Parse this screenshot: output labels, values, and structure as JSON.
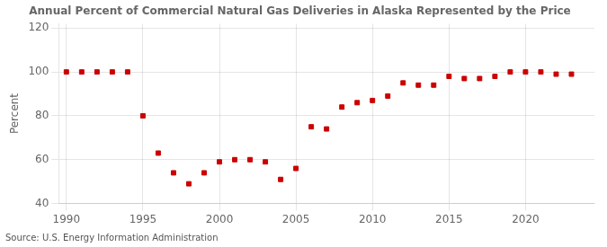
{
  "chart_data": {
    "type": "scatter",
    "title": "Annual Percent of Commercial Natural Gas Deliveries in Alaska Represented by the Price",
    "ylabel": "Percent",
    "annotations": [
      "Source: U.S. Energy Information Administration"
    ],
    "x": [
      1990,
      1991,
      1992,
      1993,
      1994,
      1995,
      1996,
      1997,
      1998,
      1999,
      2000,
      2001,
      2002,
      2003,
      2004,
      2005,
      2006,
      2007,
      2008,
      2009,
      2010,
      2011,
      2012,
      2013,
      2014,
      2015,
      2016,
      2017,
      2018,
      2019,
      2020,
      2021,
      2022,
      2023
    ],
    "values": [
      100,
      100,
      100,
      100,
      100,
      80,
      63,
      54,
      49,
      54,
      59,
      60,
      60,
      59,
      51,
      56,
      75,
      74,
      84,
      86,
      87,
      89,
      95,
      94,
      94,
      98,
      97,
      97,
      98,
      100,
      100,
      100,
      99,
      99
    ],
    "color": "#cc0000",
    "marker": "square",
    "xlim": [
      1989.5,
      2024.5
    ],
    "xticks": [
      1990,
      1995,
      2000,
      2005,
      2010,
      2015,
      2020
    ],
    "ylim": [
      40,
      122
    ],
    "yticks": [
      40,
      60,
      80,
      100,
      120
    ],
    "grid": true
  }
}
